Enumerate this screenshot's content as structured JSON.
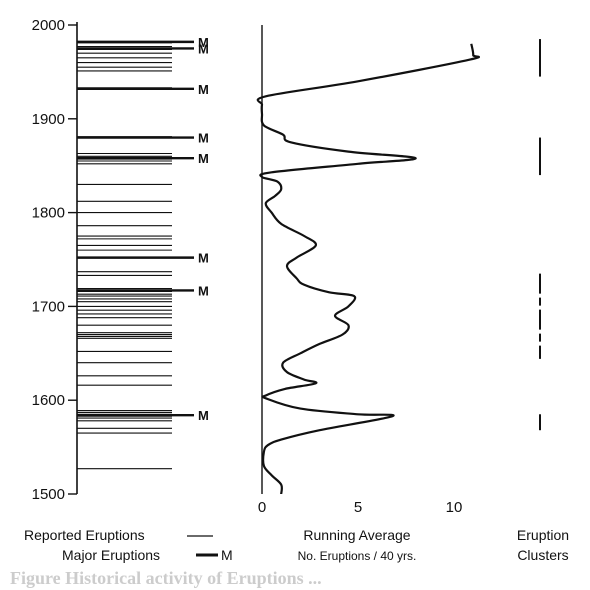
{
  "chart_data": {
    "type": "line",
    "y_axis": {
      "label": "",
      "ylim": [
        1500,
        2000
      ],
      "ticks": [
        1500,
        1600,
        1700,
        1800,
        1900,
        2000
      ],
      "tick_labels": [
        "1500",
        "1600",
        "1700",
        "1800",
        "1900",
        "2000"
      ]
    },
    "reported_eruptions": {
      "legend_label": "Reported Eruptions",
      "years": [
        1527,
        1565,
        1570,
        1578,
        1581,
        1583,
        1585,
        1587,
        1589,
        1616,
        1626,
        1640,
        1652,
        1666,
        1668,
        1670,
        1672,
        1680,
        1688,
        1692,
        1696,
        1700,
        1705,
        1708,
        1711,
        1713,
        1716,
        1719,
        1733,
        1737,
        1760,
        1765,
        1772,
        1775,
        1786,
        1800,
        1812,
        1830,
        1852,
        1855,
        1857,
        1860,
        1863,
        1881,
        1933,
        1951,
        1955,
        1960,
        1965,
        1970,
        1974,
        1977,
        1981
      ]
    },
    "major_eruptions": {
      "legend_label": "Major Eruptions",
      "marker": "M",
      "years": [
        1584,
        1717,
        1752,
        1858,
        1880,
        1932,
        1975,
        1982
      ]
    },
    "running_average": {
      "legend_label": "Running Average",
      "sublabel": "No. Eruptions / 40 yrs.",
      "xlim": [
        0,
        12
      ],
      "xticks": [
        0,
        5,
        10
      ],
      "xtick_labels": [
        "0",
        "5",
        "10"
      ],
      "points": [
        [
          1,
          1500
        ],
        [
          1,
          1510
        ],
        [
          0.5,
          1520
        ],
        [
          0.1,
          1530
        ],
        [
          0.1,
          1545
        ],
        [
          0.3,
          1552
        ],
        [
          1,
          1558
        ],
        [
          3,
          1568
        ],
        [
          6.8,
          1583
        ],
        [
          5,
          1585
        ],
        [
          2,
          1591
        ],
        [
          0.2,
          1602
        ],
        [
          0.2,
          1605
        ],
        [
          1.2,
          1612
        ],
        [
          2.8,
          1618
        ],
        [
          2.2,
          1622
        ],
        [
          1.3,
          1630
        ],
        [
          1.1,
          1640
        ],
        [
          2,
          1650
        ],
        [
          3,
          1660
        ],
        [
          4.2,
          1670
        ],
        [
          4.5,
          1680
        ],
        [
          3.8,
          1690
        ],
        [
          4.5,
          1700
        ],
        [
          4.8,
          1711
        ],
        [
          3.5,
          1715
        ],
        [
          2.2,
          1723
        ],
        [
          1.8,
          1730
        ],
        [
          1.3,
          1743
        ],
        [
          1.8,
          1752
        ],
        [
          2.8,
          1765
        ],
        [
          2.2,
          1775
        ],
        [
          1,
          1788
        ],
        [
          0.5,
          1800
        ],
        [
          0.2,
          1810
        ],
        [
          0.7,
          1818
        ],
        [
          1,
          1825
        ],
        [
          0.8,
          1833
        ],
        [
          0,
          1838
        ],
        [
          0.5,
          1843
        ],
        [
          5,
          1852
        ],
        [
          8,
          1858
        ],
        [
          4.5,
          1865
        ],
        [
          1.5,
          1875
        ],
        [
          1.1,
          1883
        ],
        [
          0.1,
          1893
        ],
        [
          0,
          1905
        ],
        [
          0,
          1915
        ],
        [
          0.2,
          1924
        ],
        [
          5,
          1940
        ],
        [
          10.8,
          1963
        ],
        [
          11,
          1968
        ],
        [
          10.9,
          1980
        ]
      ]
    },
    "eruption_clusters": {
      "legend_label": "Eruption Clusters",
      "segments": [
        [
          1568,
          1585
        ],
        [
          1644,
          1735
        ],
        [
          1840,
          1880
        ],
        [
          1945,
          1985
        ]
      ]
    }
  },
  "captions": {
    "reported": "Reported Eruptions",
    "major": "Major Eruptions",
    "major_marker": "M",
    "running_average": "Running Average",
    "running_sub": "No. Eruptions / 40 yrs.",
    "clusters_line1": "Eruption",
    "clusters_line2": "Clusters",
    "footer": "Figure  Historical activity of Eruptions ..."
  },
  "colors": {
    "ink": "#111111",
    "background": "#ffffff",
    "footer": "#cccccc"
  }
}
